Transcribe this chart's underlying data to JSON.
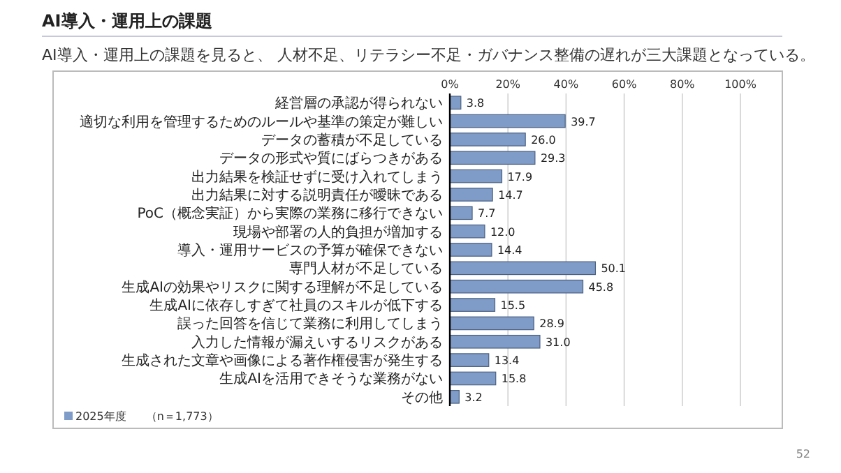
{
  "chart_data": {
    "type": "bar",
    "orientation": "horizontal",
    "title": "AI導入・運用上の課題",
    "subtitle": "AI導入・運用上の課題を見ると、 人材不足、リテラシー不足・ガバナンス整備の遅れが三大課題となっている。",
    "categories": [
      "経営層の承認が得られない",
      "適切な利用を管理するためのルールや基準の策定が難しい",
      "データの蓄積が不足している",
      "データの形式や質にばらつきがある",
      "出力結果を検証せずに受け入れてしまう",
      "出力結果に対する説明責任が曖昧である",
      "PoC（概念実証）から実際の業務に移行できない",
      "現場や部署の人的負担が増加する",
      "導入・運用サービスの予算が確保できない",
      "専門人材が不足している",
      "生成AIの効果やリスクに関する理解が不足している",
      "生成AIに依存しすぎて社員のスキルが低下する",
      "誤った回答を信じて業務に利用してしまう",
      "入力した情報が漏えいするリスクがある",
      "生成された文章や画像による著作権侵害が発生する",
      "生成AIを活用できそうな業務がない",
      "その他"
    ],
    "series": [
      {
        "name": "2025年度",
        "color": "#7f9cc8",
        "values": [
          3.8,
          39.7,
          26.0,
          29.3,
          17.9,
          14.7,
          7.7,
          12.0,
          14.4,
          50.1,
          45.8,
          15.5,
          28.9,
          31.0,
          13.4,
          15.8,
          3.2
        ],
        "value_labels": [
          "3.8",
          "39.7",
          "26.0",
          "29.3",
          "17.9",
          "14.7",
          "7.7",
          "12.0",
          "14.4",
          "50.1",
          "45.8",
          "15.5",
          "28.9",
          "31.0",
          "13.4",
          "15.8",
          "3.2"
        ]
      }
    ],
    "xlim": [
      0,
      100
    ],
    "xticks": [
      {
        "value": 0,
        "label": "0%"
      },
      {
        "value": 20,
        "label": "20%"
      },
      {
        "value": 40,
        "label": "40%"
      },
      {
        "value": 60,
        "label": "60%"
      },
      {
        "value": 80,
        "label": "80%"
      },
      {
        "value": 100,
        "label": "100%"
      }
    ],
    "grid": "x",
    "legend": "bottom left",
    "annotations": [
      "（n＝1,773）",
      "52"
    ]
  }
}
